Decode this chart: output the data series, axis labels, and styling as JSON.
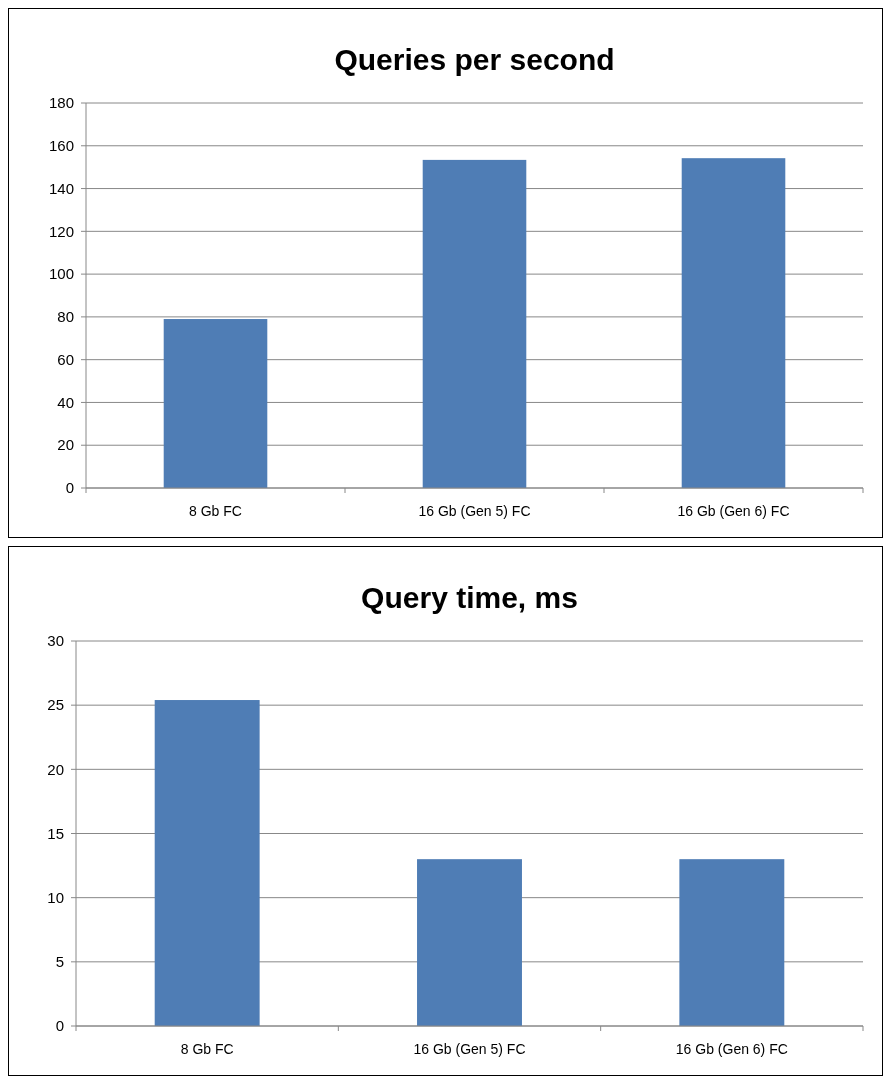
{
  "chart_data": [
    {
      "type": "bar",
      "title": "Queries per second",
      "categories": [
        "8 Gb FC",
        "16 Gb (Gen 5) FC",
        "16 Gb (Gen 6) FC"
      ],
      "values": [
        79,
        153.4,
        154.2
      ],
      "color": "#4f7db5",
      "ylim": [
        0,
        180
      ],
      "yticks": [
        0,
        20,
        40,
        60,
        80,
        100,
        120,
        140,
        160,
        180
      ],
      "grid": "y"
    },
    {
      "type": "bar",
      "title": "Query time, ms",
      "categories": [
        "8 Gb FC",
        "16 Gb (Gen 5) FC",
        "16 Gb (Gen 6) FC"
      ],
      "values": [
        25.4,
        13,
        13
      ],
      "color": "#4f7db5",
      "ylim": [
        0,
        30
      ],
      "yticks": [
        0,
        5,
        10,
        15,
        20,
        25,
        30
      ],
      "grid": "y"
    }
  ]
}
